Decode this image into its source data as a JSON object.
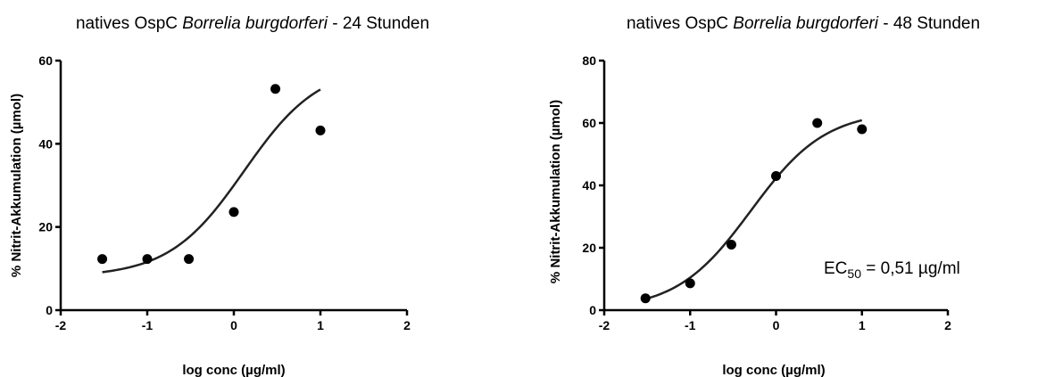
{
  "chart_data": [
    {
      "type": "scatter",
      "title_prefix": "natives OspC ",
      "title_italic": "Borrelia burgdorferi",
      "title_suffix": " - 24 Stunden",
      "xlabel": "log conc (µg/ml)",
      "ylabel": "% Nitrit-Akkumulation (µmol)",
      "xlim": [
        -2,
        2
      ],
      "ylim": [
        0,
        60
      ],
      "xticks": [
        -2,
        -1,
        0,
        1,
        2
      ],
      "yticks": [
        0,
        20,
        40,
        60
      ],
      "grid": false,
      "points": [
        {
          "x": -1.52,
          "y": 12.3
        },
        {
          "x": -1.0,
          "y": 12.3
        },
        {
          "x": -0.52,
          "y": 12.3
        },
        {
          "x": 0.0,
          "y": 23.6
        },
        {
          "x": 0.48,
          "y": 53.2
        },
        {
          "x": 1.0,
          "y": 43.2
        }
      ],
      "fit": {
        "model": "sigmoidal dose-response",
        "bottom": 8.0,
        "top": 59.0,
        "logEC50": 0.12,
        "hill": 1.0,
        "xrange": [
          -1.52,
          1.0
        ]
      },
      "annotation": null
    },
    {
      "type": "scatter",
      "title_prefix": "natives OspC ",
      "title_italic": "Borrelia burgdorferi",
      "title_suffix": " - 48 Stunden",
      "xlabel": "log conc (µg/ml)",
      "ylabel": "% Nitrit-Akkumulation (µmol)",
      "xlim": [
        -2,
        2
      ],
      "ylim": [
        0,
        80
      ],
      "xticks": [
        -2,
        -1,
        0,
        1,
        2
      ],
      "yticks": [
        0,
        20,
        40,
        60,
        80
      ],
      "grid": false,
      "points": [
        {
          "x": -1.52,
          "y": 3.8
        },
        {
          "x": -1.0,
          "y": 8.6
        },
        {
          "x": -0.52,
          "y": 21.0
        },
        {
          "x": 0.0,
          "y": 43.0
        },
        {
          "x": 0.48,
          "y": 60.0
        },
        {
          "x": 1.0,
          "y": 58.0
        }
      ],
      "fit": {
        "model": "sigmoidal dose-response",
        "bottom": 0.0,
        "top": 64.0,
        "logEC50": -0.29,
        "hill": 1.0,
        "xrange": [
          -1.52,
          1.0
        ]
      },
      "annotation": {
        "prefix": "EC",
        "sub": "50",
        "suffix": " = 0,51 µg/ml"
      }
    }
  ]
}
